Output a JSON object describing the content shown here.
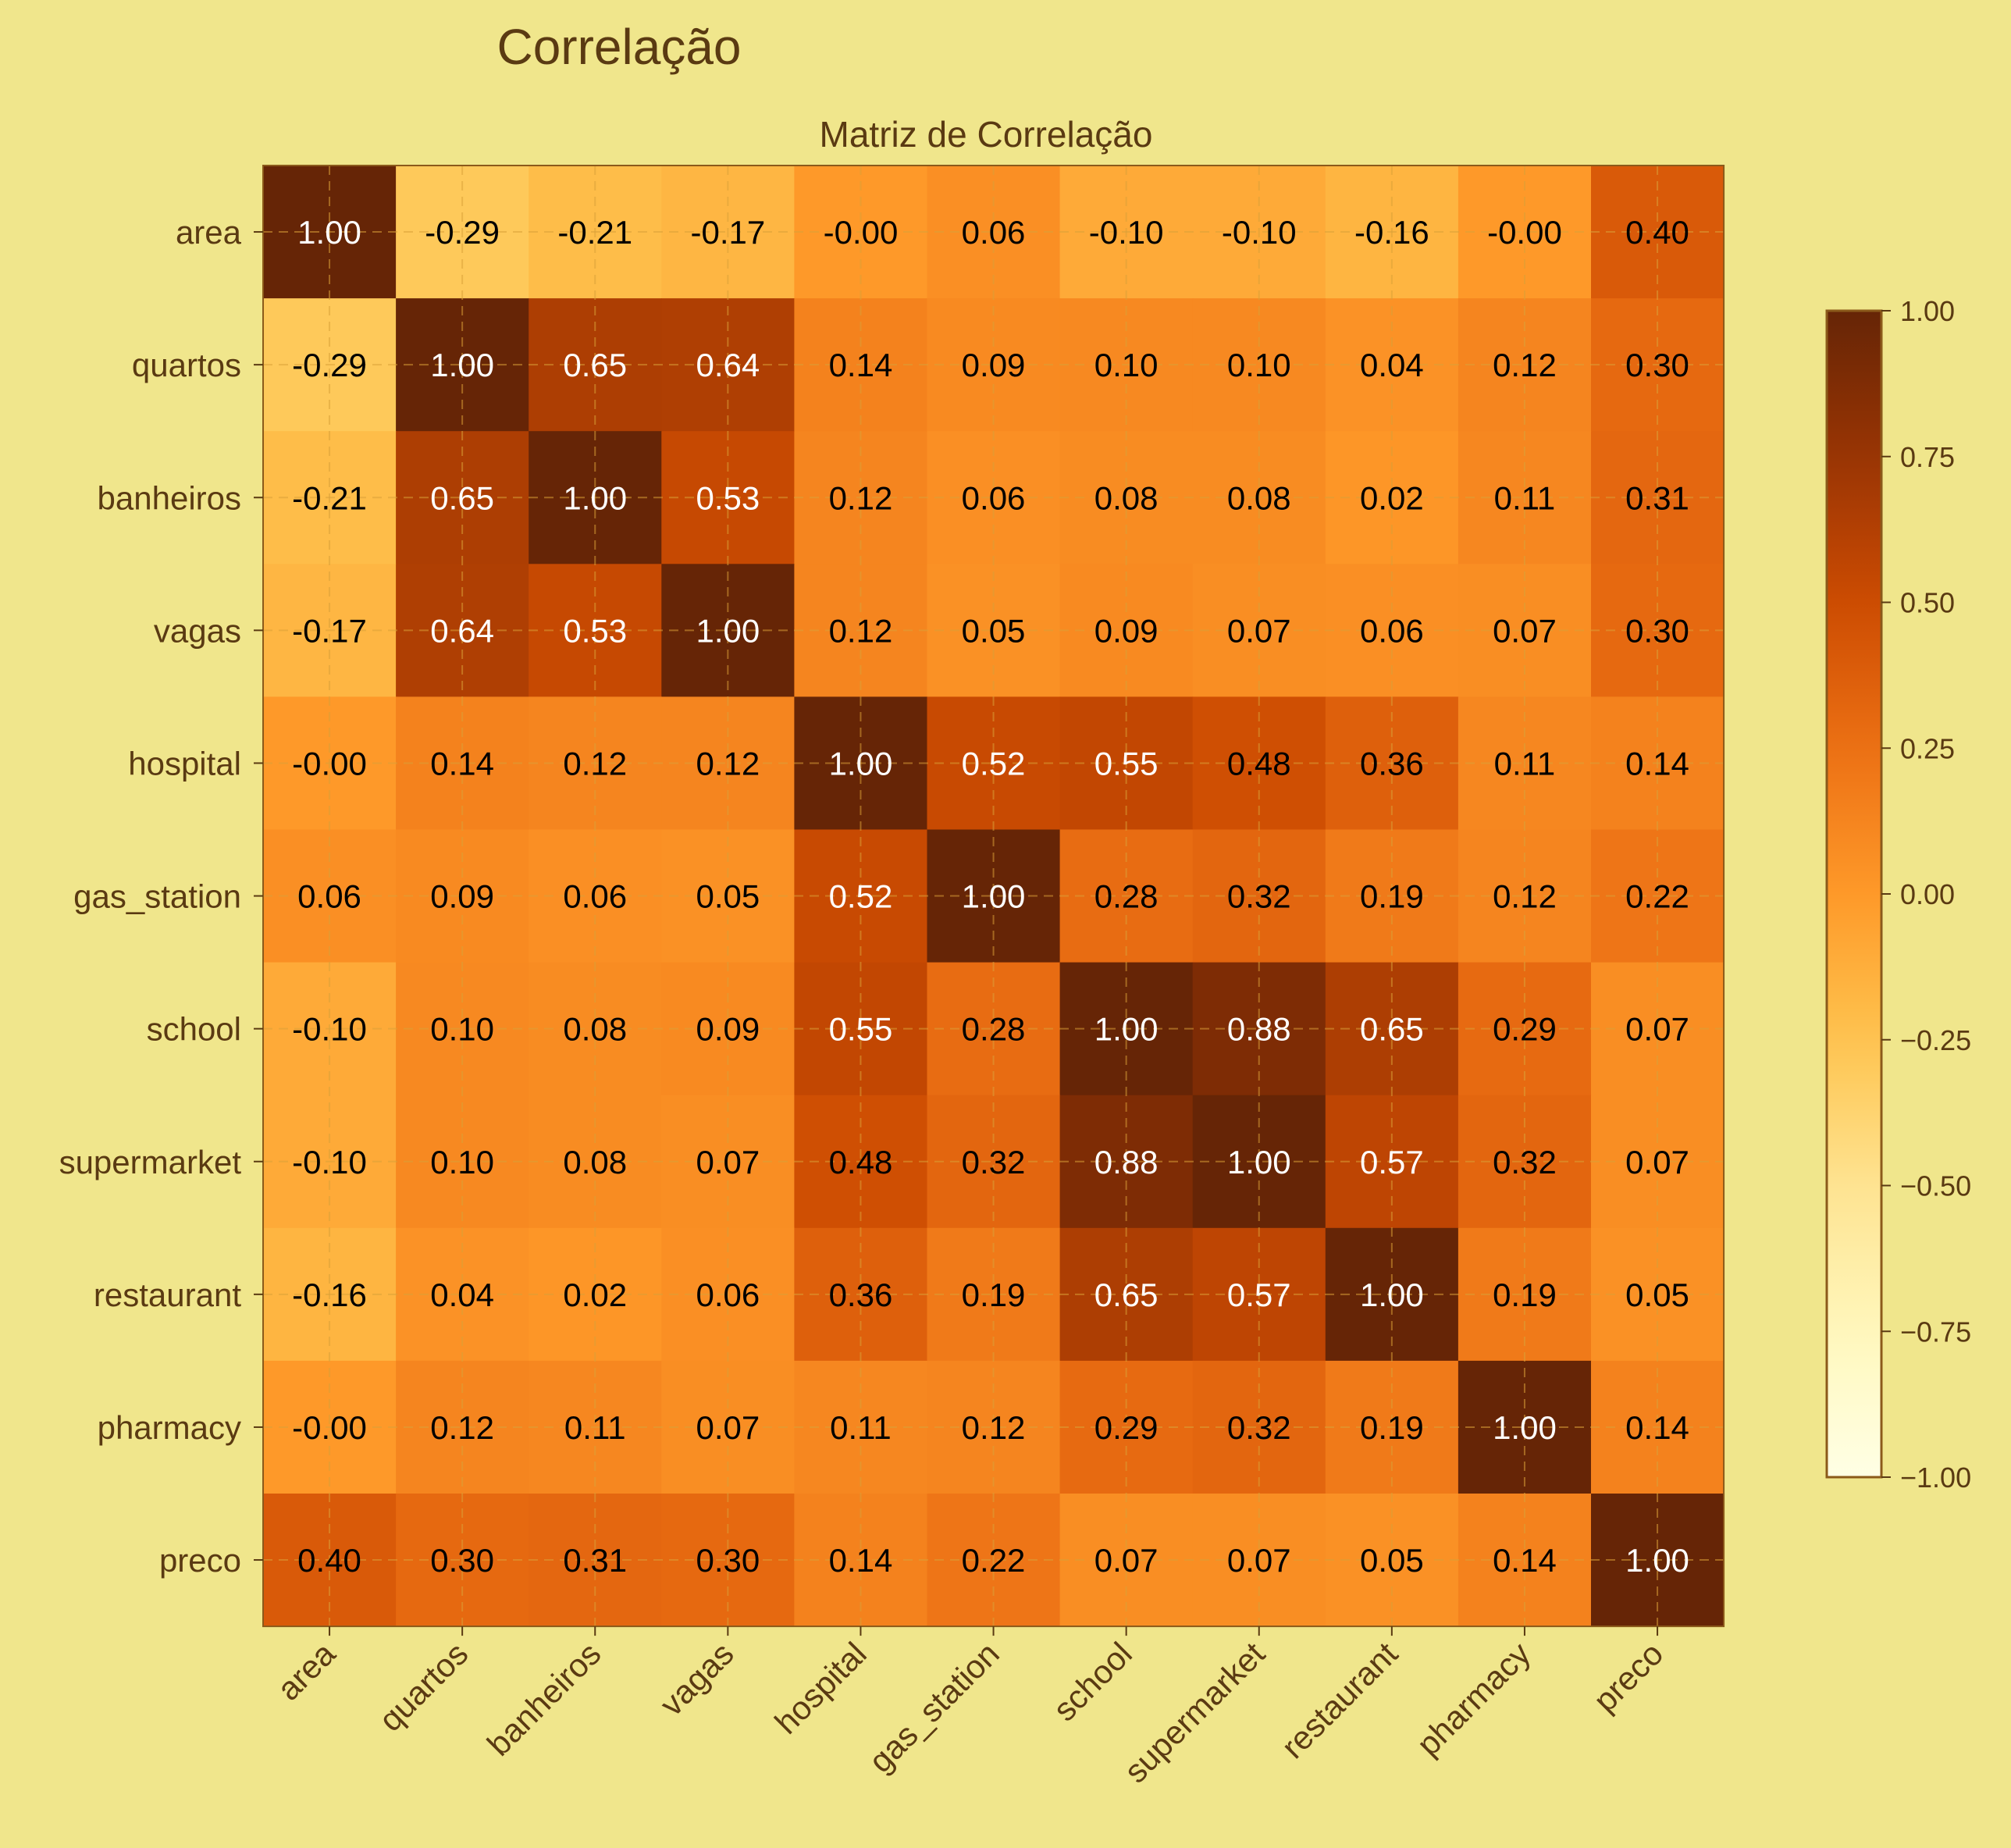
{
  "figure": {
    "suptitle": "Correlação",
    "background": "#f0e68c",
    "text_color": "#5a3a12"
  },
  "chart_data": {
    "type": "heatmap",
    "title": "Matriz de Correlação",
    "xlabel": "",
    "ylabel": "",
    "labels": [
      "area",
      "quartos",
      "banheiros",
      "vagas",
      "hospital",
      "gas_station",
      "school",
      "supermarket",
      "restaurant",
      "pharmacy",
      "preco"
    ],
    "matrix": [
      [
        1.0,
        -0.29,
        -0.21,
        -0.17,
        -0.0,
        0.06,
        -0.1,
        -0.1,
        -0.16,
        -0.0,
        0.4
      ],
      [
        -0.29,
        1.0,
        0.65,
        0.64,
        0.14,
        0.09,
        0.1,
        0.1,
        0.04,
        0.12,
        0.3
      ],
      [
        -0.21,
        0.65,
        1.0,
        0.53,
        0.12,
        0.06,
        0.08,
        0.08,
        0.02,
        0.11,
        0.31
      ],
      [
        -0.17,
        0.64,
        0.53,
        1.0,
        0.12,
        0.05,
        0.09,
        0.07,
        0.06,
        0.07,
        0.3
      ],
      [
        -0.0,
        0.14,
        0.12,
        0.12,
        1.0,
        0.52,
        0.55,
        0.48,
        0.36,
        0.11,
        0.14
      ],
      [
        0.06,
        0.09,
        0.06,
        0.05,
        0.52,
        1.0,
        0.28,
        0.32,
        0.19,
        0.12,
        0.22
      ],
      [
        -0.1,
        0.1,
        0.08,
        0.09,
        0.55,
        0.28,
        1.0,
        0.88,
        0.65,
        0.29,
        0.07
      ],
      [
        -0.1,
        0.1,
        0.08,
        0.07,
        0.48,
        0.32,
        0.88,
        1.0,
        0.57,
        0.32,
        0.07
      ],
      [
        -0.16,
        0.04,
        0.02,
        0.06,
        0.36,
        0.19,
        0.65,
        0.57,
        1.0,
        0.19,
        0.05
      ],
      [
        -0.0,
        0.12,
        0.11,
        0.07,
        0.11,
        0.12,
        0.29,
        0.32,
        0.19,
        1.0,
        0.14
      ],
      [
        0.4,
        0.3,
        0.31,
        0.3,
        0.14,
        0.22,
        0.07,
        0.07,
        0.05,
        0.14,
        1.0
      ]
    ],
    "colormap": "YlOrBr",
    "vmin": -1.0,
    "vmax": 1.0,
    "annotation_format": "0.00",
    "grid": true,
    "grid_style": "dashed",
    "colorbar": {
      "position": "right",
      "tick_values": [
        1.0,
        0.75,
        0.5,
        0.25,
        0.0,
        -0.25,
        -0.5,
        -0.75,
        -1.0
      ],
      "tick_labels": [
        "1.00",
        "0.75",
        "0.50",
        "0.25",
        "0.00",
        "−0.25",
        "−0.50",
        "−0.75",
        "−1.00"
      ]
    }
  }
}
